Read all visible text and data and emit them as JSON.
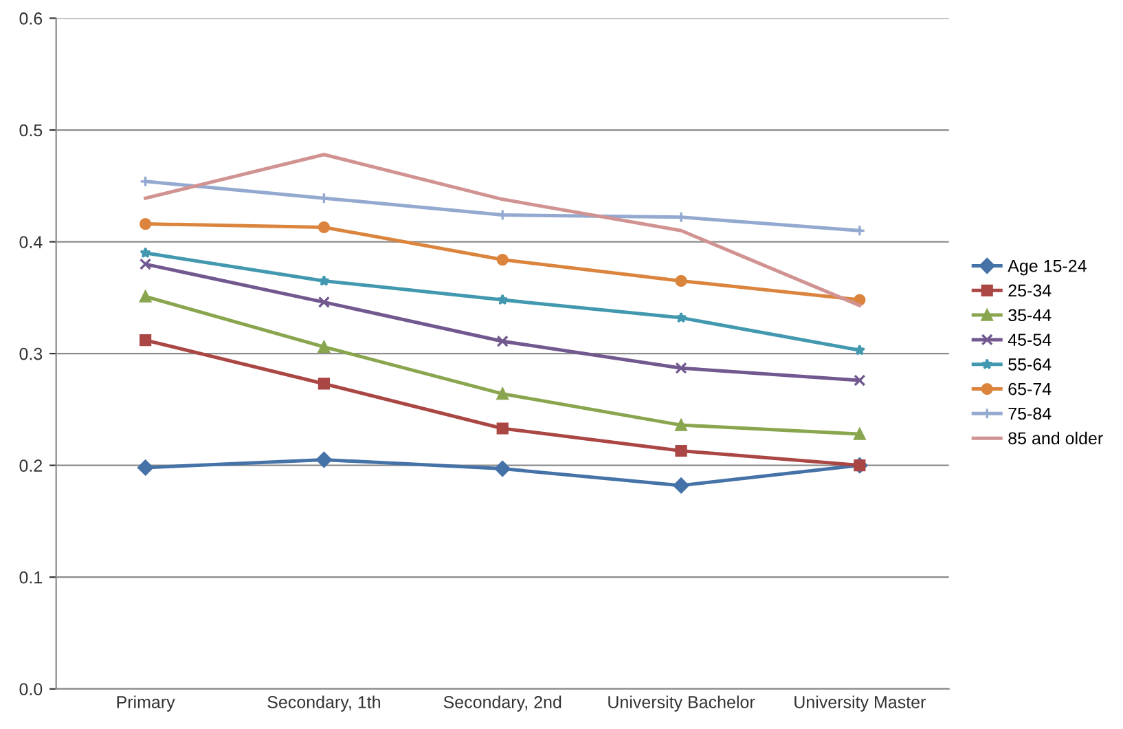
{
  "chart_data": {
    "type": "line",
    "categories": [
      "Primary",
      "Secondary, 1th",
      "Secondary, 2nd",
      "University Bachelor",
      "University Master"
    ],
    "series": [
      {
        "name": "Age 15-24",
        "color": "#4572a7",
        "marker": "diamond",
        "values": [
          0.198,
          0.205,
          0.197,
          0.182,
          0.2
        ]
      },
      {
        "name": "25-34",
        "color": "#aa4643",
        "marker": "square",
        "values": [
          0.312,
          0.273,
          0.233,
          0.213,
          0.2
        ]
      },
      {
        "name": "35-44",
        "color": "#89a54e",
        "marker": "triangle",
        "values": [
          0.351,
          0.306,
          0.264,
          0.236,
          0.228
        ]
      },
      {
        "name": "45-54",
        "color": "#71588f",
        "marker": "cross",
        "values": [
          0.38,
          0.346,
          0.311,
          0.287,
          0.276
        ]
      },
      {
        "name": "55-64",
        "color": "#4198af",
        "marker": "star",
        "values": [
          0.39,
          0.365,
          0.348,
          0.332,
          0.303
        ]
      },
      {
        "name": "65-74",
        "color": "#db843d",
        "marker": "circle",
        "values": [
          0.416,
          0.413,
          0.384,
          0.365,
          0.348
        ]
      },
      {
        "name": "75-84",
        "color": "#93a9cf",
        "marker": "plus",
        "values": [
          0.454,
          0.439,
          0.424,
          0.422,
          0.41
        ]
      },
      {
        "name": "85 and older",
        "color": "#d19392",
        "marker": "none",
        "values": [
          0.439,
          0.478,
          0.438,
          0.41,
          0.343
        ]
      }
    ],
    "ylim": [
      0,
      0.6
    ],
    "yticks": [
      {
        "value": 0,
        "label": "0.0"
      },
      0.1,
      0.2,
      0.3,
      0.4,
      0.5,
      0.6
    ],
    "grid": "y",
    "legend": "right",
    "line_style": "solid"
  }
}
